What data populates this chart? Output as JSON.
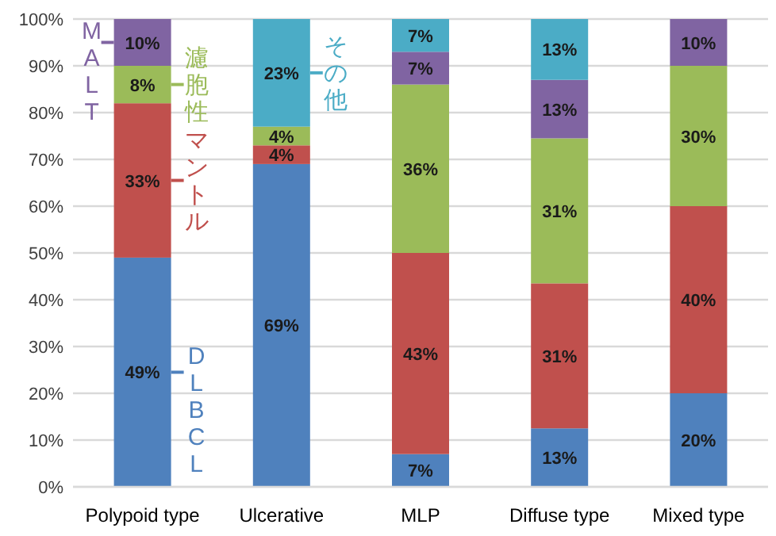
{
  "chart_data": {
    "type": "bar",
    "stacked": true,
    "categories": [
      "Polypoid type",
      "Ulcerative",
      "MLP",
      "Diffuse type",
      "Mixed type"
    ],
    "series": [
      {
        "name": "DLBCL",
        "color": "#4f81bd",
        "values": [
          49,
          69,
          7,
          12.5,
          20
        ],
        "value_labels": [
          "49%",
          "69%",
          "7%",
          "13%",
          "20%"
        ]
      },
      {
        "name": "マントル",
        "color": "#c0504d",
        "values": [
          33,
          4,
          43,
          31,
          40
        ],
        "value_labels": [
          "33%",
          "4%",
          "43%",
          "31%",
          "40%"
        ]
      },
      {
        "name": "濾胞性",
        "color": "#9bbb59",
        "values": [
          8,
          4,
          36,
          31,
          30
        ],
        "value_labels": [
          "8%",
          "4%",
          "36%",
          "31%",
          "30%"
        ]
      },
      {
        "name": "MALT",
        "color": "#8064a2",
        "values": [
          10,
          0,
          7,
          12.5,
          10
        ],
        "value_labels": [
          "10%",
          null,
          "7%",
          "13%",
          "10%"
        ]
      },
      {
        "name": "その他",
        "color": "#4bacc6",
        "values": [
          0,
          23,
          7,
          13,
          0
        ],
        "value_labels": [
          null,
          "23%",
          "7%",
          "13%",
          null
        ]
      }
    ],
    "ylim": [
      0,
      100
    ],
    "yticks": [
      {
        "value": 0,
        "label": "0%"
      },
      {
        "value": 10,
        "label": "10%"
      },
      {
        "value": 20,
        "label": "20%"
      },
      {
        "value": 30,
        "label": "30%"
      },
      {
        "value": 40,
        "label": "40%"
      },
      {
        "value": 50,
        "label": "50%"
      },
      {
        "value": 60,
        "label": "60%"
      },
      {
        "value": 70,
        "label": "70%"
      },
      {
        "value": 80,
        "label": "80%"
      },
      {
        "value": 90,
        "label": "90%"
      },
      {
        "value": 100,
        "label": "100%"
      }
    ],
    "grid": "y",
    "legend": "left"
  }
}
